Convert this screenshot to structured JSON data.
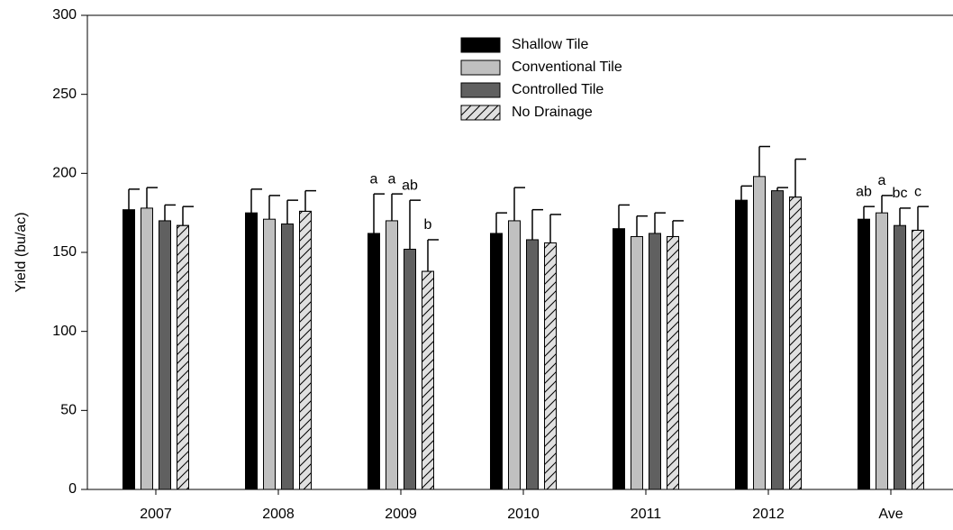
{
  "chart_data": {
    "type": "bar",
    "y_label": "Yield (bu/ac)",
    "categories": [
      "2007",
      "2008",
      "2009",
      "2010",
      "2011",
      "2012",
      "Ave"
    ],
    "series": [
      {
        "name": "Shallow Tile",
        "color": "#000000",
        "hatch": false,
        "values": [
          177,
          175,
          162,
          162,
          165,
          183,
          171
        ],
        "errors": [
          13,
          15,
          25,
          13,
          15,
          9,
          8
        ],
        "annotations": [
          null,
          null,
          "a",
          null,
          null,
          null,
          "ab"
        ]
      },
      {
        "name": "Conventional Tile",
        "color": "#c0c0c0",
        "hatch": false,
        "values": [
          178,
          171,
          170,
          170,
          160,
          198,
          175
        ],
        "errors": [
          13,
          15,
          17,
          21,
          13,
          19,
          11
        ],
        "annotations": [
          null,
          null,
          "a",
          null,
          null,
          null,
          "a"
        ]
      },
      {
        "name": "Controlled Tile",
        "color": "#606060",
        "hatch": false,
        "values": [
          170,
          168,
          152,
          158,
          162,
          189,
          167
        ],
        "errors": [
          10,
          15,
          31,
          19,
          13,
          2,
          11
        ],
        "annotations": [
          null,
          null,
          "ab",
          null,
          null,
          null,
          "bc"
        ]
      },
      {
        "name": "No Drainage",
        "color": "#e0e0e0",
        "hatch": true,
        "values": [
          167,
          176,
          138,
          156,
          160,
          185,
          164
        ],
        "errors": [
          12,
          13,
          20,
          18,
          10,
          24,
          15
        ],
        "annotations": [
          null,
          null,
          "b",
          null,
          null,
          null,
          "c"
        ]
      }
    ],
    "ylim": [
      0,
      300
    ],
    "yticks": [
      0,
      50,
      100,
      150,
      200,
      250,
      300
    ],
    "grid": false
  }
}
